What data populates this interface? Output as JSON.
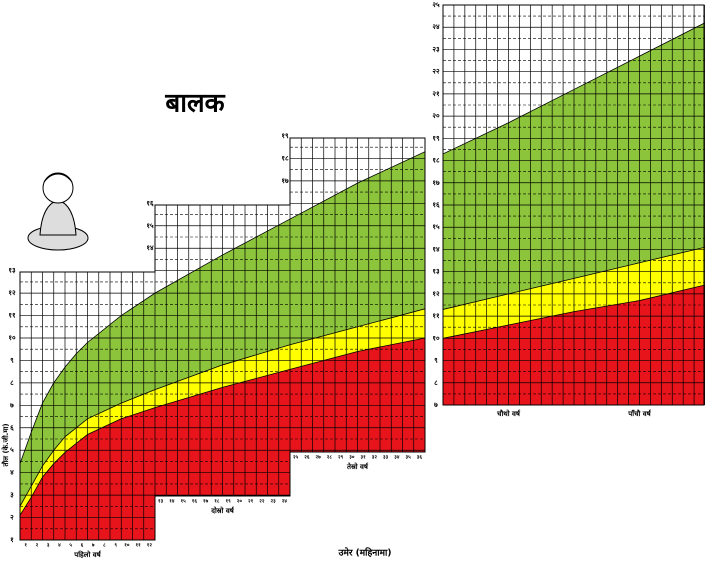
{
  "chart_data": [
    {
      "type": "area",
      "title": "बालक",
      "ylabel": "तौल (के.जी.मा)",
      "xlabel": "उमेर (महिनामा)",
      "period_labels": [
        "पहिलो वर्ष",
        "दोस्रो वर्ष",
        "तेस्रो वर्ष"
      ],
      "x": [
        0,
        1,
        2,
        3,
        4,
        5,
        6,
        9,
        12,
        18,
        24,
        30,
        36
      ],
      "series": [
        {
          "color": "#8cc43c",
          "values": [
            4.4,
            5.8,
            7.1,
            8.0,
            8.7,
            9.3,
            9.8,
            11.0,
            12.0,
            13.7,
            15.3,
            16.9,
            18.3
          ]
        },
        {
          "color": "#ffff00",
          "values": [
            2.5,
            3.4,
            4.3,
            5.0,
            5.6,
            6.0,
            6.4,
            7.1,
            7.7,
            8.8,
            9.7,
            10.5,
            11.3
          ]
        },
        {
          "color": "#e8141c",
          "values": [
            2.1,
            2.9,
            3.8,
            4.4,
            4.9,
            5.3,
            5.7,
            6.4,
            6.9,
            7.8,
            8.6,
            9.4,
            10.0
          ]
        }
      ],
      "xlim": [
        0,
        36
      ],
      "ylim": [
        1,
        19
      ],
      "xticks": [
        {
          "value": 1,
          "label": "१"
        },
        {
          "value": 2,
          "label": "२"
        },
        {
          "value": 3,
          "label": "३"
        },
        {
          "value": 4,
          "label": "४"
        },
        {
          "value": 5,
          "label": "५"
        },
        {
          "value": 6,
          "label": "६"
        },
        {
          "value": 7,
          "label": "७"
        },
        {
          "value": 8,
          "label": "८"
        },
        {
          "value": 9,
          "label": "९"
        },
        {
          "value": 10,
          "label": "१०"
        },
        {
          "value": 11,
          "label": "११"
        },
        {
          "value": 12,
          "label": "१२"
        },
        {
          "value": 13,
          "label": "१३"
        },
        {
          "value": 14,
          "label": "१४"
        },
        {
          "value": 15,
          "label": "१५"
        },
        {
          "value": 16,
          "label": "१६"
        },
        {
          "value": 17,
          "label": "१७"
        },
        {
          "value": 18,
          "label": "१८"
        },
        {
          "value": 19,
          "label": "१९"
        },
        {
          "value": 20,
          "label": "२०"
        },
        {
          "value": 21,
          "label": "२१"
        },
        {
          "value": 22,
          "label": "२२"
        },
        {
          "value": 23,
          "label": "२३"
        },
        {
          "value": 24,
          "label": "२४"
        },
        {
          "value": 25,
          "label": "२५"
        },
        {
          "value": 26,
          "label": "२६"
        },
        {
          "value": 27,
          "label": "२७"
        },
        {
          "value": 28,
          "label": "२८"
        },
        {
          "value": 29,
          "label": "२९"
        },
        {
          "value": 30,
          "label": "३०"
        },
        {
          "value": 31,
          "label": "३१"
        },
        {
          "value": 32,
          "label": "३२"
        },
        {
          "value": 33,
          "label": "३३"
        },
        {
          "value": 34,
          "label": "३४"
        },
        {
          "value": 35,
          "label": "३५"
        },
        {
          "value": 36,
          "label": "३६"
        }
      ],
      "yticks": [
        {
          "value": 1,
          "label": "१"
        },
        {
          "value": 2,
          "label": "२"
        },
        {
          "value": 3,
          "label": "३"
        },
        {
          "value": 4,
          "label": "४"
        },
        {
          "value": 5,
          "label": "५"
        },
        {
          "value": 6,
          "label": "६"
        },
        {
          "value": 7,
          "label": "७"
        },
        {
          "value": 8,
          "label": "८"
        },
        {
          "value": 9,
          "label": "९"
        },
        {
          "value": 10,
          "label": "१०"
        },
        {
          "value": 11,
          "label": "११"
        },
        {
          "value": 12,
          "label": "१२"
        },
        {
          "value": 13,
          "label": "१३"
        },
        {
          "value": 14,
          "label": "१४"
        },
        {
          "value": 15,
          "label": "१५"
        },
        {
          "value": 16,
          "label": "१६"
        },
        {
          "value": 17,
          "label": "१७"
        },
        {
          "value": 18,
          "label": "१८"
        },
        {
          "value": 19,
          "label": "१९"
        }
      ],
      "grid": true
    },
    {
      "type": "area",
      "period_labels": [
        "चौथो वर्ष",
        "पाँचौ वर्ष"
      ],
      "x": [
        36,
        42,
        48,
        54,
        60
      ],
      "series": [
        {
          "color": "#8cc43c",
          "values": [
            18.3,
            19.7,
            21.2,
            22.7,
            24.2
          ]
        },
        {
          "color": "#ffff00",
          "values": [
            11.3,
            12.0,
            12.7,
            13.4,
            14.1
          ]
        },
        {
          "color": "#e8141c",
          "values": [
            10.0,
            10.6,
            11.2,
            11.7,
            12.4
          ]
        }
      ],
      "xlim": [
        36,
        60
      ],
      "ylim": [
        7,
        25
      ],
      "yticks": [
        {
          "value": 7,
          "label": "७"
        },
        {
          "value": 8,
          "label": "८"
        },
        {
          "value": 9,
          "label": "९"
        },
        {
          "value": 10,
          "label": "१०"
        },
        {
          "value": 11,
          "label": "११"
        },
        {
          "value": 12,
          "label": "१२"
        },
        {
          "value": 13,
          "label": "१३"
        },
        {
          "value": 14,
          "label": "१४"
        },
        {
          "value": 15,
          "label": "१५"
        },
        {
          "value": 16,
          "label": "१६"
        },
        {
          "value": 17,
          "label": "१७"
        },
        {
          "value": 18,
          "label": "१८"
        },
        {
          "value": 19,
          "label": "१९"
        },
        {
          "value": 20,
          "label": "२०"
        },
        {
          "value": 21,
          "label": "२१"
        },
        {
          "value": 22,
          "label": "२२"
        },
        {
          "value": 23,
          "label": "२३"
        },
        {
          "value": 24,
          "label": "२४"
        },
        {
          "value": 25,
          "label": "२५"
        }
      ],
      "grid": true
    }
  ]
}
